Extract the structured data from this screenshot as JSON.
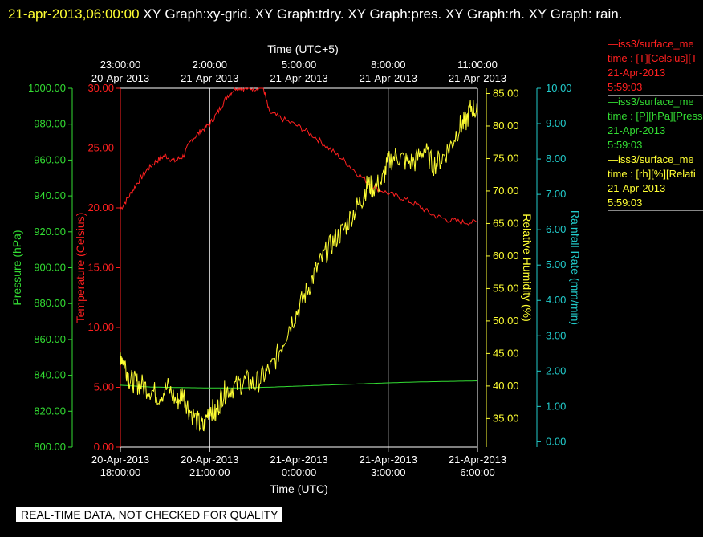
{
  "header": {
    "timestamp": "21-apr-2013,06:00:00",
    "graphs": "  XY Graph:xy-grid.  XY Graph:tdry.  XY Graph:pres.  XY Graph:rh.  XY Graph: rain."
  },
  "legend": [
    {
      "name": "—iss3/surface_me",
      "line": "time : [T][Celsius][T",
      "date": "21-Apr-2013",
      "time": "5:59:03",
      "color": "#ff2020"
    },
    {
      "name": "—iss3/surface_me",
      "line": "time : [P][hPa][Press",
      "date": "21-Apr-2013",
      "time": "5:59:03",
      "color": "#33dd33"
    },
    {
      "name": "—iss3/surface_me",
      "line": "time : [rh][%][Relati",
      "date": "21-Apr-2013",
      "time": "5:59:03",
      "color": "#ffff33"
    }
  ],
  "footer_note": "REAL-TIME DATA, NOT CHECKED FOR QUALITY",
  "chart_data": {
    "type": "line",
    "x_bottom_label": "Time (UTC)",
    "x_top_label": "Time (UTC+5)",
    "x_range_utc": [
      "20-Apr-2013 18:00:00",
      "21-Apr-2013 06:00:00"
    ],
    "x_bottom_ticks": [
      {
        "date": "20-Apr-2013",
        "time": "18:00:00"
      },
      {
        "date": "20-Apr-2013",
        "time": "21:00:00"
      },
      {
        "date": "21-Apr-2013",
        "time": "0:00:00"
      },
      {
        "date": "21-Apr-2013",
        "time": "3:00:00"
      },
      {
        "date": "21-Apr-2013",
        "time": "6:00:00"
      }
    ],
    "x_top_ticks": [
      {
        "time": "23:00:00",
        "date": "20-Apr-2013"
      },
      {
        "time": "2:00:00",
        "date": "21-Apr-2013"
      },
      {
        "time": "5:00:00",
        "date": "21-Apr-2013"
      },
      {
        "time": "8:00:00",
        "date": "21-Apr-2013"
      },
      {
        "time": "11:00:00",
        "date": "21-Apr-2013"
      }
    ],
    "axes": [
      {
        "id": "pressure",
        "label": "Pressure (hPa)",
        "color": "#33dd33",
        "range": [
          800,
          1000
        ],
        "ticks": [
          "800.00",
          "820.00",
          "840.00",
          "860.00",
          "880.00",
          "900.00",
          "920.00",
          "940.00",
          "960.00",
          "980.00",
          "1000.00"
        ]
      },
      {
        "id": "temperature",
        "label": "Temperature (Celsius)",
        "color": "#ff2020",
        "range": [
          0,
          30
        ],
        "ticks": [
          "0.00",
          "5.00",
          "10.00",
          "15.00",
          "20.00",
          "25.00",
          "30.00"
        ]
      },
      {
        "id": "rh",
        "label": "Relative Humidity (%)",
        "color": "#ffff33",
        "range": [
          30.6,
          85.8
        ],
        "ticks": [
          "35.00",
          "40.00",
          "45.00",
          "50.00",
          "55.00",
          "60.00",
          "65.00",
          "70.00",
          "75.00",
          "80.00",
          "85.00"
        ]
      },
      {
        "id": "rain",
        "label": "Rainfall Rate (mm/min)",
        "color": "#22cccc",
        "range": [
          -0.15,
          10.0
        ],
        "ticks": [
          "0.00",
          "1.00",
          "2.00",
          "3.00",
          "4.00",
          "5.00",
          "6.00",
          "7.00",
          "8.00",
          "9.00",
          "10.00"
        ]
      }
    ],
    "grid": "vertical lines at bottom ticks",
    "series": [
      {
        "axis": "temperature",
        "color": "#ff2020",
        "x_hours": [
          0,
          0.3,
          0.6,
          0.9,
          1.2,
          1.5,
          1.8,
          2.1,
          2.4,
          2.7,
          3.0,
          3.3,
          3.6,
          3.9,
          4.2,
          4.5,
          4.8,
          5.0,
          5.4,
          6.0,
          6.5,
          7.0,
          7.5,
          8.0,
          8.5,
          9.0,
          9.5,
          10.0,
          10.5,
          11.0,
          11.5,
          12.0
        ],
        "values": [
          19.9,
          21.0,
          22.2,
          23.2,
          23.9,
          24.4,
          23.9,
          24.3,
          25.7,
          26.4,
          27.0,
          28.1,
          29.4,
          30.1,
          30.0,
          30.0,
          30.1,
          28.0,
          27.5,
          26.8,
          26.0,
          25.0,
          24.0,
          22.8,
          21.8,
          21.2,
          20.8,
          20.2,
          19.4,
          19.0,
          18.8,
          18.8
        ]
      },
      {
        "axis": "pressure",
        "color": "#33dd33",
        "x_hours": [
          0,
          1,
          2,
          3,
          3.5,
          4,
          5,
          6,
          7,
          8,
          9,
          10,
          11,
          12
        ],
        "values": [
          834.5,
          833.5,
          833.2,
          833.0,
          833.0,
          833.0,
          833.4,
          834.0,
          834.6,
          835.2,
          835.8,
          836.3,
          836.6,
          836.9
        ]
      },
      {
        "axis": "rh",
        "color": "#ffff33",
        "x_hours": [
          0,
          0.15,
          0.3,
          0.5,
          0.7,
          1.0,
          1.3,
          1.6,
          1.9,
          2.1,
          2.3,
          2.6,
          2.8,
          3.0,
          3.2,
          3.4,
          3.6,
          3.9,
          4.2,
          4.5,
          4.8,
          5.1,
          5.4,
          5.7,
          6.0,
          6.3,
          6.6,
          6.9,
          7.2,
          7.5,
          7.8,
          8.1,
          8.3,
          8.5,
          8.8,
          9.0,
          9.3,
          9.6,
          9.9,
          10.2,
          10.5,
          10.8,
          11.1,
          11.4,
          11.6,
          11.8,
          12.0
        ],
        "values": [
          45.0,
          43.5,
          41.0,
          40.5,
          40.2,
          39.5,
          38.5,
          39.8,
          37.5,
          39.0,
          36.5,
          34.5,
          33.5,
          37.0,
          35.5,
          38.5,
          39.5,
          40.0,
          40.8,
          40.2,
          41.5,
          43.0,
          46.0,
          49.5,
          52.0,
          55.0,
          58.0,
          60.5,
          62.5,
          64.0,
          66.5,
          68.5,
          71.0,
          70.5,
          71.5,
          74.5,
          75.5,
          74.5,
          74.5,
          76.5,
          74.0,
          75.0,
          77.0,
          80.0,
          80.5,
          83.0,
          82.0
        ]
      }
    ]
  }
}
